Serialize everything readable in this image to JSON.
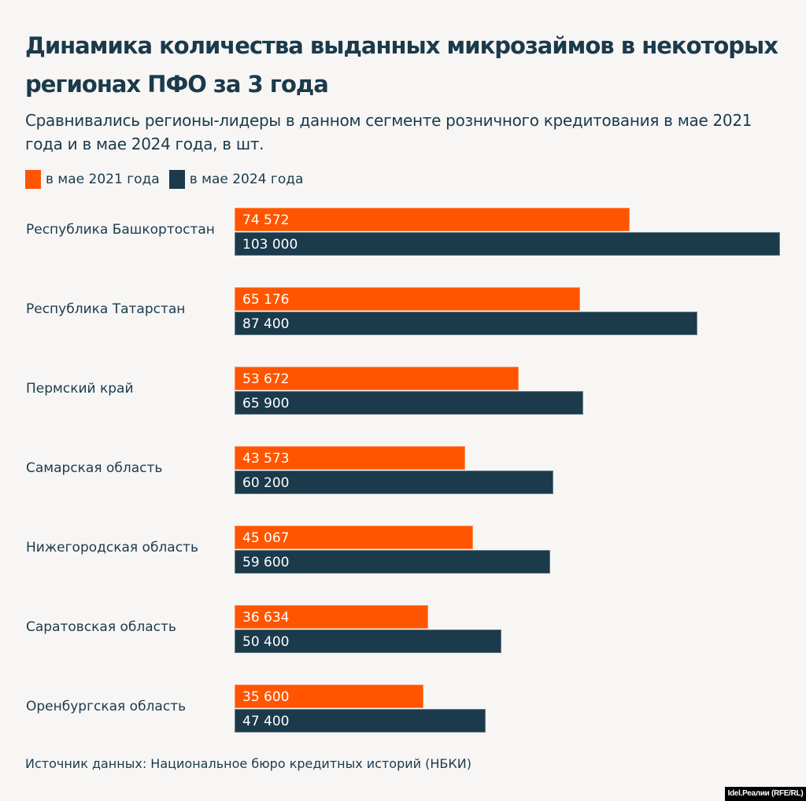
{
  "chart_data": {
    "type": "bar",
    "orientation": "horizontal",
    "title": "Динамика количества выданных микрозаймов в некоторых регионах ПФО за 3 года",
    "subtitle": "Сравнивались регионы-лидеры в данном сегменте розничного кредитования в мае 2021 года и в мае 2024 года, в шт.",
    "categories": [
      "Республика Башкортостан",
      "Республика Татарстан",
      "Пермский край",
      "Самарская область",
      "Нижегородская область",
      "Саратовская область",
      "Оренбургская область"
    ],
    "series": [
      {
        "name": "в мае 2021 года",
        "color": "#ff5500",
        "values": [
          74572,
          65176,
          53672,
          43573,
          45067,
          36634,
          35600
        ],
        "labels": [
          "74 572",
          "65 176",
          "53 672",
          "43 573",
          "45 067",
          "36 634",
          "35 600"
        ]
      },
      {
        "name": "в мае 2024 года",
        "color": "#1b3a4b",
        "values": [
          103000,
          87400,
          65900,
          60200,
          59600,
          50400,
          47400
        ],
        "labels": [
          "103 000",
          "87 400",
          "65 900",
          "60 200",
          "59 600",
          "50 400",
          "47 400"
        ]
      }
    ],
    "xlabel": "",
    "ylabel": "",
    "xlim": [
      0,
      103000
    ],
    "grid": false,
    "legend_position": "top-left",
    "source": "Источник данных: Национальное бюро кредитных историй (НБКИ)"
  },
  "watermark": "Idel.Реалии (RFE/RL)"
}
